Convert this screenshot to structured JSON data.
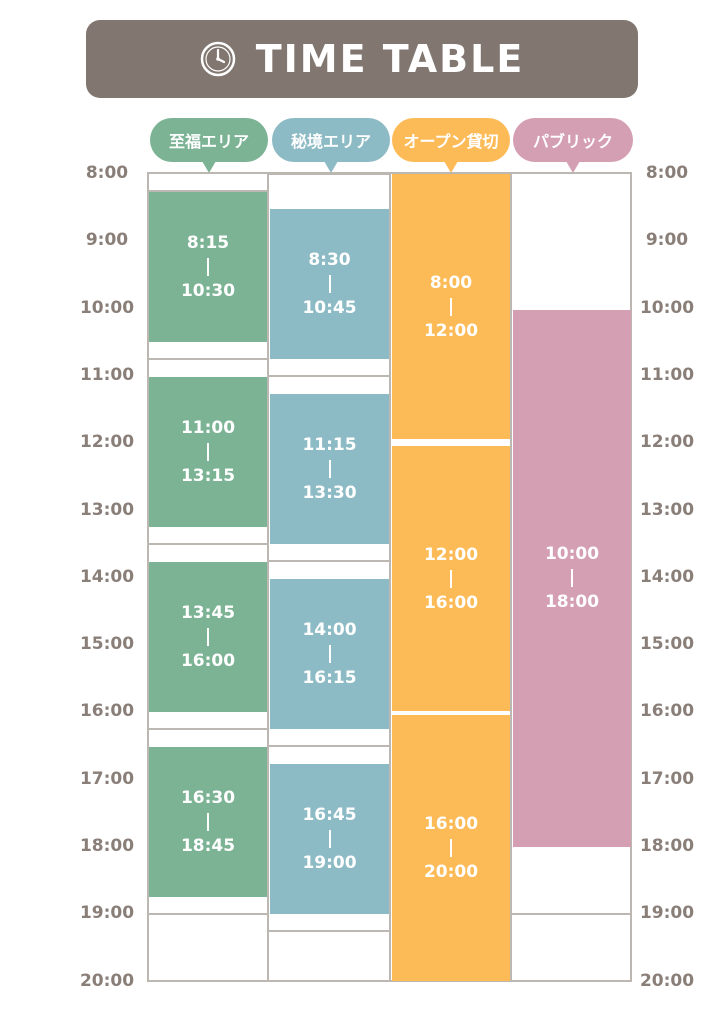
{
  "title": "TIME TABLE",
  "colors": {
    "title_bg": "#817770",
    "green": "#7bb394",
    "blue": "#8dbbc5",
    "orange": "#fdbb58",
    "pink": "#d49fb3",
    "grid": "#bdb7b2",
    "time_text": "#8a7f78"
  },
  "icons": {
    "title_icon": "clock-icon"
  },
  "areas": [
    {
      "name": "至福エリア",
      "color": "#7bb394"
    },
    {
      "name": "秘境エリア",
      "color": "#8dbbc5"
    },
    {
      "name": "オープン貸切",
      "color": "#fdbb58"
    },
    {
      "name": "パブリック",
      "color": "#d49fb3"
    }
  ],
  "hours": [
    "8:00",
    "9:00",
    "10:00",
    "11:00",
    "12:00",
    "13:00",
    "14:00",
    "15:00",
    "16:00",
    "17:00",
    "18:00",
    "19:00",
    "20:00"
  ],
  "slots": [
    [
      {
        "start": "8:15",
        "end": "10:30"
      },
      {
        "start": "11:00",
        "end": "13:15"
      },
      {
        "start": "13:45",
        "end": "16:00"
      },
      {
        "start": "16:30",
        "end": "18:45"
      }
    ],
    [
      {
        "start": "8:30",
        "end": "10:45"
      },
      {
        "start": "11:15",
        "end": "13:30"
      },
      {
        "start": "14:00",
        "end": "16:15"
      },
      {
        "start": "16:45",
        "end": "19:00"
      }
    ],
    [
      {
        "start": "8:00",
        "end": "12:00"
      },
      {
        "start": "12:00",
        "end": "16:00"
      },
      {
        "start": "16:00",
        "end": "20:00"
      }
    ],
    [
      {
        "start": "10:00",
        "end": "18:00"
      }
    ]
  ]
}
